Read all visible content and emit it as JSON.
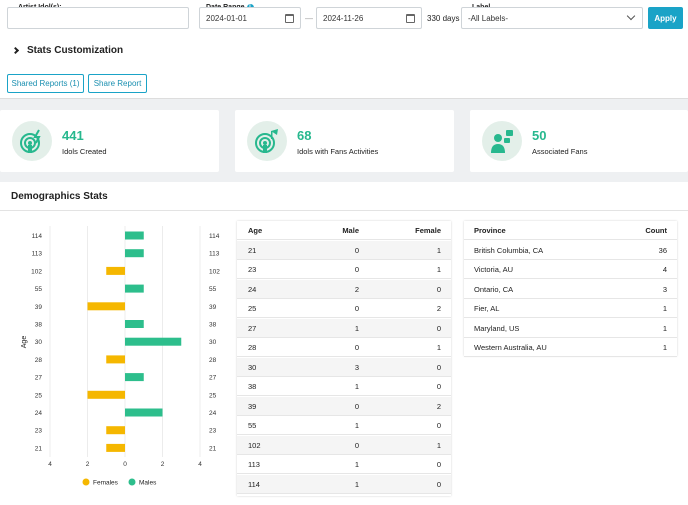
{
  "filters": {
    "artist_label": "Artist Idol(s):",
    "artist_value": "",
    "date_label": "Date Range",
    "date_info": "i",
    "date_from": "2024-01-01",
    "date_sep": "—",
    "date_to": "2024-11-26",
    "days": "330 days",
    "label_label": "Label",
    "label_value": "-All Labels-",
    "apply": "Apply"
  },
  "customization": "Stats Customization",
  "actions": {
    "shared_reports": "Shared Reports (1)",
    "share_report": "Share Report"
  },
  "stats": [
    {
      "value": "441",
      "label": "Idols Created",
      "icon": "idol-broadcast-icon"
    },
    {
      "value": "68",
      "label": "Idols with Fans Activities",
      "icon": "fan-activity-icon"
    },
    {
      "value": "50",
      "label": "Associated Fans",
      "icon": "associated-fans-icon"
    }
  ],
  "demographics_title": "Demographics Stats",
  "colors": {
    "accent": "#1aa3c7",
    "green": "#27b88e",
    "female": "#f5b700",
    "male": "#2dbe8c"
  },
  "chart_data": {
    "type": "bar",
    "orientation": "horizontal",
    "categories": [
      "114",
      "113",
      "102",
      "55",
      "39",
      "38",
      "30",
      "28",
      "27",
      "25",
      "24",
      "23",
      "21"
    ],
    "series": [
      {
        "name": "Females",
        "values": [
          0,
          0,
          1,
          0,
          2,
          0,
          0,
          1,
          0,
          2,
          0,
          1,
          1
        ]
      },
      {
        "name": "Males",
        "values": [
          1,
          1,
          0,
          1,
          0,
          1,
          3,
          0,
          1,
          0,
          2,
          0,
          0
        ]
      }
    ],
    "xticks": [
      "4",
      "2",
      "0",
      "2",
      "4"
    ],
    "xlim": [
      -4,
      4
    ],
    "ylabel": "Age",
    "legend": "bottom"
  },
  "age_table": {
    "headers": [
      "Age",
      "Male",
      "Female"
    ],
    "rows": [
      [
        "21",
        "0",
        "1"
      ],
      [
        "23",
        "0",
        "1"
      ],
      [
        "24",
        "2",
        "0"
      ],
      [
        "25",
        "0",
        "2"
      ],
      [
        "27",
        "1",
        "0"
      ],
      [
        "28",
        "0",
        "1"
      ],
      [
        "30",
        "3",
        "0"
      ],
      [
        "38",
        "1",
        "0"
      ],
      [
        "39",
        "0",
        "2"
      ],
      [
        "55",
        "1",
        "0"
      ],
      [
        "102",
        "0",
        "1"
      ],
      [
        "113",
        "1",
        "0"
      ],
      [
        "114",
        "1",
        "0"
      ]
    ]
  },
  "province_table": {
    "headers": [
      "Province",
      "Count"
    ],
    "rows": [
      [
        "British Columbia, CA",
        "36"
      ],
      [
        "Victoria, AU",
        "4"
      ],
      [
        "Ontario, CA",
        "3"
      ],
      [
        "Fier, AL",
        "1"
      ],
      [
        "Maryland, US",
        "1"
      ],
      [
        "Western Australia, AU",
        "1"
      ]
    ]
  }
}
